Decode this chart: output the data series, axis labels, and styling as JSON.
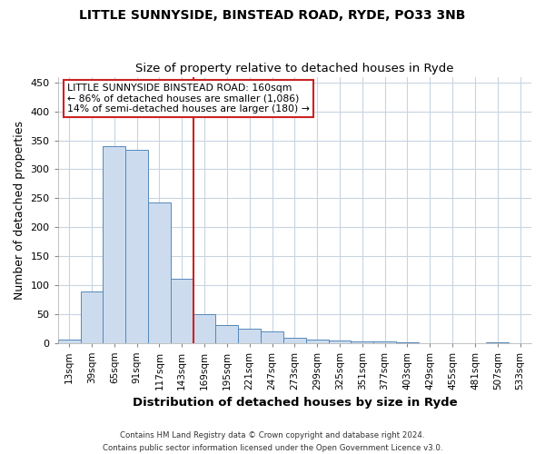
{
  "title1": "LITTLE SUNNYSIDE, BINSTEAD ROAD, RYDE, PO33 3NB",
  "title2": "Size of property relative to detached houses in Ryde",
  "xlabel": "Distribution of detached houses by size in Ryde",
  "ylabel": "Number of detached properties",
  "footer1": "Contains HM Land Registry data © Crown copyright and database right 2024.",
  "footer2": "Contains public sector information licensed under the Open Government Licence v3.0.",
  "annotation_line1": "LITTLE SUNNYSIDE BINSTEAD ROAD: 160sqm",
  "annotation_line2": "← 86% of detached houses are smaller (1,086)",
  "annotation_line3": "14% of semi-detached houses are larger (180) →",
  "bar_color": "#ccdcee",
  "bar_edge_color": "#5588bb",
  "ref_line_color": "#cc2222",
  "categories": [
    "13sqm",
    "39sqm",
    "65sqm",
    "91sqm",
    "117sqm",
    "143sqm",
    "169sqm",
    "195sqm",
    "221sqm",
    "247sqm",
    "273sqm",
    "299sqm",
    "325sqm",
    "351sqm",
    "377sqm",
    "403sqm",
    "429sqm",
    "455sqm",
    "481sqm",
    "507sqm",
    "533sqm"
  ],
  "values": [
    5,
    88,
    340,
    333,
    243,
    110,
    49,
    30,
    24,
    19,
    9,
    5,
    4,
    3,
    2,
    1,
    0,
    0,
    0,
    1,
    0
  ],
  "ylim": [
    0,
    460
  ],
  "yticks": [
    0,
    50,
    100,
    150,
    200,
    250,
    300,
    350,
    400,
    450
  ],
  "bg_color": "#ffffff",
  "plot_bg_color": "#ffffff",
  "grid_color": "#c8d4e0"
}
